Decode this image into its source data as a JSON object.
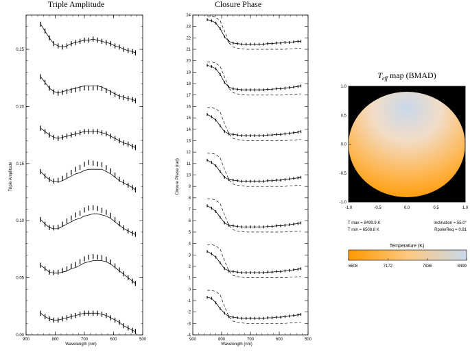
{
  "figure": {
    "panels": {
      "triple": {
        "title": "Triple Amplitude",
        "xlabel": "Wavelength (nm)",
        "ylabel": "Triple Amplitude",
        "xticks": [
          "900",
          "800",
          "700",
          "600",
          "500"
        ],
        "yticks": [
          "0.00",
          "0.05",
          "0.10",
          "0.15",
          "0.20",
          "0.25"
        ]
      },
      "closure": {
        "title": "Closure Phase",
        "xlabel": "Wavelength (nm)",
        "ylabel": "Closure Phase (rad)",
        "xticks": [
          "900",
          "800",
          "700",
          "600",
          "500"
        ],
        "yticks": [
          "-4",
          "-3",
          "-2",
          "-1",
          "0",
          "1",
          "2",
          "3",
          "4",
          "5",
          "6",
          "7",
          "8",
          "9",
          "10",
          "11",
          "12",
          "13",
          "14",
          "15",
          "16",
          "17",
          "18",
          "19",
          "20",
          "21",
          "22",
          "23",
          "24"
        ]
      },
      "map": {
        "title_prefix": "T",
        "title_sub": "eff",
        "title_suffix": " map (BMAD)",
        "xticks": [
          "-1.0",
          "-0.5",
          "0.0",
          "0.5",
          "1.0"
        ],
        "yticks": [
          "1.0",
          "0.5",
          "0.0",
          "-0.5",
          "-1.0"
        ],
        "tmax": "T max =  8499.9 K",
        "tmin": "T min =  6508.8 K",
        "inclination": "Inclination = 55.0°",
        "rpole": "Rpole/Req = 0.81",
        "colorbar_title": "Temperature (K)",
        "colorbar_ticks": [
          "6508",
          "7172",
          "7836",
          "8499"
        ],
        "colors": {
          "hot": "#c8d8ea",
          "cool": "#ff9a00",
          "background": "#000000"
        }
      }
    }
  },
  "chart_data": [
    {
      "type": "line",
      "title": "Triple Amplitude",
      "xlabel": "Wavelength (nm)",
      "ylabel": "Triple Amplitude",
      "xlim": [
        900,
        500
      ],
      "ylim": [
        0.0,
        0.28
      ],
      "x": [
        850,
        835,
        820,
        805,
        790,
        775,
        760,
        745,
        730,
        715,
        700,
        685,
        670,
        655,
        640,
        625,
        610,
        595,
        580,
        565,
        550,
        535,
        525
      ],
      "series": [
        {
          "values": [
            0.272,
            0.266,
            0.26,
            0.255,
            0.253,
            0.252,
            0.253,
            0.255,
            0.256,
            0.257,
            0.258,
            0.258,
            0.259,
            0.258,
            0.257,
            0.256,
            0.255,
            0.253,
            0.252,
            0.25,
            0.249,
            0.248,
            0.247
          ]
        },
        {
          "values": [
            0.226,
            0.221,
            0.216,
            0.213,
            0.212,
            0.213,
            0.214,
            0.215,
            0.216,
            0.217,
            0.218,
            0.218,
            0.218,
            0.218,
            0.217,
            0.215,
            0.213,
            0.211,
            0.209,
            0.208,
            0.207,
            0.206,
            0.205
          ]
        },
        {
          "values": [
            0.181,
            0.178,
            0.175,
            0.173,
            0.172,
            0.173,
            0.174,
            0.175,
            0.176,
            0.177,
            0.178,
            0.178,
            0.178,
            0.178,
            0.177,
            0.176,
            0.174,
            0.172,
            0.17,
            0.168,
            0.167,
            0.165,
            0.164
          ]
        },
        {
          "values": [
            0.143,
            0.139,
            0.136,
            0.134,
            0.134,
            0.135,
            0.137,
            0.139,
            0.141,
            0.142,
            0.144,
            0.145,
            0.145,
            0.145,
            0.145,
            0.143,
            0.141,
            0.138,
            0.135,
            0.133,
            0.131,
            0.129,
            0.127
          ]
        },
        {
          "values": [
            0.101,
            0.097,
            0.094,
            0.093,
            0.093,
            0.095,
            0.097,
            0.099,
            0.101,
            0.102,
            0.104,
            0.105,
            0.106,
            0.106,
            0.105,
            0.104,
            0.102,
            0.099,
            0.096,
            0.093,
            0.091,
            0.089,
            0.088
          ]
        },
        {
          "values": [
            0.061,
            0.058,
            0.055,
            0.054,
            0.054,
            0.055,
            0.056,
            0.058,
            0.059,
            0.061,
            0.063,
            0.064,
            0.065,
            0.065,
            0.065,
            0.064,
            0.062,
            0.059,
            0.056,
            0.053,
            0.05,
            0.047,
            0.045
          ]
        },
        {
          "values": [
            0.019,
            0.016,
            0.014,
            0.013,
            0.013,
            0.014,
            0.015,
            0.016,
            0.017,
            0.018,
            0.019,
            0.019,
            0.019,
            0.019,
            0.018,
            0.017,
            0.015,
            0.013,
            0.011,
            0.008,
            0.006,
            0.004,
            0.003
          ]
        }
      ]
    },
    {
      "type": "line",
      "title": "Closure Phase",
      "xlabel": "Wavelength (nm)",
      "ylabel": "Closure Phase (rad)",
      "xlim": [
        900,
        500
      ],
      "ylim": [
        -4,
        24
      ],
      "x": [
        850,
        835,
        820,
        805,
        790,
        775,
        760,
        745,
        730,
        715,
        700,
        685,
        670,
        655,
        640,
        625,
        610,
        595,
        580,
        565,
        550,
        535,
        525
      ],
      "series": [
        {
          "values": [
            23.6,
            23.5,
            23.3,
            22.8,
            22.1,
            21.7,
            21.55,
            21.5,
            21.45,
            21.45,
            21.45,
            21.45,
            21.45,
            21.45,
            21.5,
            21.5,
            21.55,
            21.55,
            21.6,
            21.6,
            21.65,
            21.7,
            21.7
          ]
        },
        {
          "values": [
            19.6,
            19.5,
            19.3,
            18.8,
            18.1,
            17.7,
            17.55,
            17.5,
            17.45,
            17.45,
            17.45,
            17.45,
            17.45,
            17.45,
            17.5,
            17.5,
            17.55,
            17.55,
            17.6,
            17.65,
            17.7,
            17.75,
            17.8
          ]
        },
        {
          "values": [
            15.3,
            15.1,
            14.8,
            14.3,
            13.8,
            13.6,
            13.55,
            13.5,
            13.45,
            13.45,
            13.45,
            13.45,
            13.45,
            13.45,
            13.5,
            13.5,
            13.55,
            13.55,
            13.6,
            13.65,
            13.7,
            13.75,
            13.8
          ]
        },
        {
          "values": [
            11.3,
            11.1,
            10.8,
            10.3,
            9.8,
            9.6,
            9.55,
            9.5,
            9.45,
            9.45,
            9.45,
            9.45,
            9.45,
            9.45,
            9.5,
            9.5,
            9.55,
            9.55,
            9.6,
            9.65,
            9.7,
            9.75,
            9.8
          ]
        },
        {
          "values": [
            7.3,
            7.1,
            6.8,
            6.3,
            5.8,
            5.6,
            5.55,
            5.5,
            5.45,
            5.45,
            5.45,
            5.45,
            5.45,
            5.45,
            5.5,
            5.5,
            5.55,
            5.55,
            5.6,
            5.65,
            5.7,
            5.75,
            5.8
          ]
        },
        {
          "values": [
            3.3,
            3.1,
            2.8,
            2.3,
            1.8,
            1.6,
            1.55,
            1.5,
            1.45,
            1.45,
            1.45,
            1.45,
            1.45,
            1.45,
            1.5,
            1.5,
            1.55,
            1.55,
            1.6,
            1.65,
            1.7,
            1.75,
            1.8
          ]
        },
        {
          "values": [
            -0.7,
            -0.8,
            -1.2,
            -1.7,
            -2.1,
            -2.4,
            -2.45,
            -2.5,
            -2.55,
            -2.55,
            -2.55,
            -2.55,
            -2.55,
            -2.55,
            -2.5,
            -2.5,
            -2.45,
            -2.45,
            -2.4,
            -2.35,
            -2.3,
            -2.25,
            -2.2
          ]
        }
      ],
      "dashed_series": [
        {
          "values": [
            23.9,
            23.9,
            23.8,
            23.5,
            22.6,
            21.6,
            21.2,
            21.1,
            21.05,
            21.0,
            21.0,
            21.0,
            21.0,
            21.0,
            21.0,
            21.0,
            21.0,
            21.0,
            21.0,
            21.05,
            21.05,
            21.1,
            21.1
          ]
        },
        {
          "values": [
            19.9,
            19.9,
            19.8,
            19.5,
            18.6,
            17.6,
            17.2,
            17.1,
            17.05,
            17.0,
            17.0,
            17.0,
            17.0,
            17.0,
            17.0,
            17.0,
            17.0,
            17.0,
            17.0,
            17.05,
            17.05,
            17.1,
            17.1
          ]
        },
        {
          "values": [
            15.9,
            15.9,
            15.8,
            15.5,
            14.5,
            13.6,
            13.2,
            13.1,
            13.05,
            13.0,
            13.0,
            13.0,
            13.0,
            13.0,
            13.0,
            13.0,
            13.0,
            13.0,
            13.0,
            13.05,
            13.05,
            13.1,
            13.1
          ]
        },
        {
          "values": [
            11.9,
            11.9,
            11.8,
            11.5,
            10.5,
            9.6,
            9.2,
            9.1,
            9.05,
            9.0,
            9.0,
            9.0,
            9.0,
            9.0,
            9.0,
            9.0,
            9.0,
            9.0,
            9.0,
            9.05,
            9.05,
            9.1,
            9.1
          ]
        },
        {
          "values": [
            7.9,
            7.9,
            7.8,
            7.5,
            6.5,
            5.6,
            5.2,
            5.1,
            5.05,
            5.0,
            5.0,
            5.0,
            5.0,
            5.0,
            5.0,
            5.0,
            5.0,
            5.0,
            5.0,
            5.05,
            5.05,
            5.1,
            5.1
          ]
        },
        {
          "values": [
            3.9,
            3.9,
            3.8,
            3.5,
            2.5,
            1.6,
            1.2,
            1.1,
            1.05,
            1.0,
            1.0,
            1.0,
            1.0,
            1.0,
            1.0,
            1.0,
            1.0,
            1.0,
            1.0,
            1.05,
            1.05,
            1.1,
            1.1
          ]
        },
        {
          "values": [
            -0.1,
            -0.1,
            -0.2,
            -0.5,
            -1.5,
            -2.4,
            -2.8,
            -2.9,
            -2.95,
            -3.0,
            -3.0,
            -3.0,
            -3.0,
            -3.0,
            -3.0,
            -3.0,
            -3.0,
            -3.0,
            -3.0,
            -2.95,
            -2.95,
            -2.9,
            -2.9
          ]
        }
      ]
    },
    {
      "type": "heatmap",
      "title": "Teff map (BMAD)",
      "xlim": [
        -1.0,
        1.0
      ],
      "ylim": [
        -1.0,
        1.0
      ],
      "colorbar_range": [
        6508,
        8499
      ]
    }
  ]
}
